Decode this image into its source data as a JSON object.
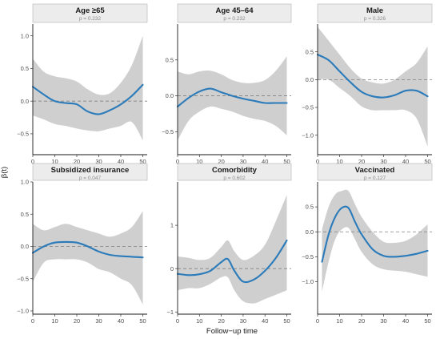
{
  "figure": {
    "xlabel": "Follow−up time",
    "ylabel": "β(t)"
  },
  "chart_data": [
    {
      "type": "line",
      "panel": 1,
      "title": "Age ≥65",
      "subtitle": "p = 0.232",
      "xlim": [
        0,
        52
      ],
      "ylim": [
        -0.82,
        1.18
      ],
      "xticks": [
        "0",
        "10",
        "20",
        "30",
        "40",
        "50"
      ],
      "yticks": [
        "1.0",
        "0.5",
        "0.0",
        "−0.5"
      ],
      "reference_y": 0,
      "x": [
        0,
        5,
        10,
        15,
        20,
        25,
        30,
        35,
        40,
        45,
        50
      ],
      "series": [
        {
          "values": [
            0.22,
            0.1,
            0.0,
            -0.03,
            -0.05,
            -0.16,
            -0.2,
            -0.14,
            -0.05,
            0.08,
            0.25
          ]
        },
        {
          "lower": [
            -0.22,
            -0.28,
            -0.35,
            -0.38,
            -0.42,
            -0.45,
            -0.46,
            -0.42,
            -0.38,
            -0.32,
            -0.6
          ]
        },
        {
          "upper": [
            0.65,
            0.45,
            0.38,
            0.35,
            0.3,
            0.18,
            0.1,
            0.12,
            0.28,
            0.55,
            1.0
          ]
        }
      ]
    },
    {
      "type": "line",
      "panel": 2,
      "title": "Age 45–64",
      "subtitle": "p = 0.232",
      "xlim": [
        0,
        52
      ],
      "ylim": [
        -0.82,
        1.0
      ],
      "xticks": [
        "0",
        "10",
        "20",
        "30",
        "40",
        "50"
      ],
      "yticks": [
        "0.5",
        "0.0",
        "−0.5"
      ],
      "reference_y": 0,
      "x": [
        0,
        5,
        10,
        15,
        20,
        25,
        30,
        35,
        40,
        45,
        50
      ],
      "series": [
        {
          "values": [
            -0.15,
            -0.03,
            0.06,
            0.1,
            0.05,
            0.0,
            -0.04,
            -0.07,
            -0.1,
            -0.1,
            -0.1
          ]
        },
        {
          "lower": [
            -0.62,
            -0.35,
            -0.22,
            -0.15,
            -0.18,
            -0.22,
            -0.28,
            -0.32,
            -0.35,
            -0.42,
            -0.55
          ]
        },
        {
          "upper": [
            0.34,
            0.3,
            0.34,
            0.35,
            0.3,
            0.22,
            0.18,
            0.18,
            0.22,
            0.35,
            0.55
          ]
        }
      ]
    },
    {
      "type": "line",
      "panel": 3,
      "title": "Male",
      "subtitle": "p = 0.326",
      "xlim": [
        0,
        52
      ],
      "ylim": [
        -1.35,
        1.0
      ],
      "xticks": [
        "0",
        "10",
        "20",
        "30",
        "40",
        "50"
      ],
      "yticks": [
        "0.5",
        "0.0",
        "−0.5",
        "−1.0"
      ],
      "reference_y": 0,
      "x": [
        0,
        5,
        10,
        15,
        20,
        25,
        30,
        35,
        40,
        45,
        50
      ],
      "series": [
        {
          "values": [
            0.45,
            0.35,
            0.15,
            -0.05,
            -0.22,
            -0.3,
            -0.32,
            -0.28,
            -0.2,
            -0.2,
            -0.3
          ]
        },
        {
          "lower": [
            0.0,
            0.0,
            -0.15,
            -0.3,
            -0.48,
            -0.55,
            -0.55,
            -0.55,
            -0.55,
            -0.7,
            -1.2
          ]
        },
        {
          "upper": [
            0.95,
            0.7,
            0.45,
            0.2,
            0.02,
            -0.05,
            -0.07,
            0.0,
            0.15,
            0.3,
            0.6
          ]
        }
      ]
    },
    {
      "type": "line",
      "panel": 4,
      "title": "Subsidized insurance",
      "subtitle": "p = 0.047",
      "xlim": [
        0,
        52
      ],
      "ylim": [
        -1.05,
        1.0
      ],
      "xticks": [
        "0",
        "10",
        "20",
        "30",
        "40",
        "50"
      ],
      "yticks": [
        "1.0",
        "0.5",
        "0.0",
        "−0.5",
        "−1.0"
      ],
      "reference_y": 0,
      "x": [
        0,
        5,
        10,
        15,
        20,
        25,
        30,
        35,
        40,
        45,
        50
      ],
      "series": [
        {
          "values": [
            -0.1,
            0.0,
            0.06,
            0.07,
            0.06,
            0.0,
            -0.08,
            -0.13,
            -0.15,
            -0.16,
            -0.17
          ]
        },
        {
          "lower": [
            -0.55,
            -0.25,
            -0.2,
            -0.2,
            -0.2,
            -0.25,
            -0.35,
            -0.4,
            -0.5,
            -0.6,
            -0.9
          ]
        },
        {
          "upper": [
            0.35,
            0.25,
            0.3,
            0.35,
            0.3,
            0.25,
            0.2,
            0.15,
            0.2,
            0.3,
            0.55
          ]
        }
      ]
    },
    {
      "type": "line",
      "panel": 5,
      "title": "Comorbidity",
      "subtitle": "p = 0.602",
      "xlim": [
        0,
        52
      ],
      "ylim": [
        -1.05,
        2.0
      ],
      "xticks": [
        "0",
        "10",
        "20",
        "30",
        "40",
        "50"
      ],
      "yticks": [
        "1",
        "0",
        "−1"
      ],
      "reference_y": 0,
      "x": [
        0,
        5,
        10,
        15,
        20,
        23,
        26,
        30,
        35,
        40,
        45,
        50
      ],
      "series": [
        {
          "values": [
            -0.12,
            -0.15,
            -0.13,
            -0.05,
            0.15,
            0.22,
            -0.05,
            -0.3,
            -0.25,
            -0.05,
            0.25,
            0.65
          ]
        },
        {
          "lower": [
            -0.5,
            -0.45,
            -0.45,
            -0.35,
            -0.2,
            -0.2,
            -0.5,
            -0.75,
            -0.8,
            -0.7,
            -0.6,
            -0.5
          ]
        },
        {
          "upper": [
            0.28,
            0.25,
            0.2,
            0.25,
            0.5,
            0.65,
            0.4,
            0.2,
            0.3,
            0.55,
            1.1,
            1.7
          ]
        }
      ]
    },
    {
      "type": "line",
      "panel": 6,
      "title": "Vaccinated",
      "subtitle": "p = 0.127",
      "xlim": [
        0,
        52
      ],
      "ylim": [
        -1.65,
        1.0
      ],
      "xticks": [
        "0",
        "10",
        "20",
        "30",
        "40",
        "50"
      ],
      "yticks": [
        "0.5",
        "0.0",
        "−0.5",
        "−1.0"
      ],
      "reference_y": 0,
      "x": [
        2,
        5,
        8,
        11,
        14,
        17,
        20,
        25,
        30,
        35,
        40,
        45,
        50
      ],
      "series": [
        {
          "values": [
            -0.6,
            -0.05,
            0.3,
            0.48,
            0.48,
            0.2,
            -0.05,
            -0.35,
            -0.48,
            -0.5,
            -0.48,
            -0.44,
            -0.38
          ]
        },
        {
          "lower": [
            -1.2,
            -0.6,
            -0.15,
            0.05,
            0.08,
            -0.15,
            -0.4,
            -0.65,
            -0.75,
            -0.78,
            -0.8,
            -0.85,
            -0.9
          ]
        },
        {
          "upper": [
            0.05,
            0.5,
            0.75,
            0.82,
            0.82,
            0.55,
            0.3,
            0.0,
            -0.2,
            -0.22,
            -0.18,
            -0.05,
            0.15
          ]
        }
      ]
    }
  ]
}
